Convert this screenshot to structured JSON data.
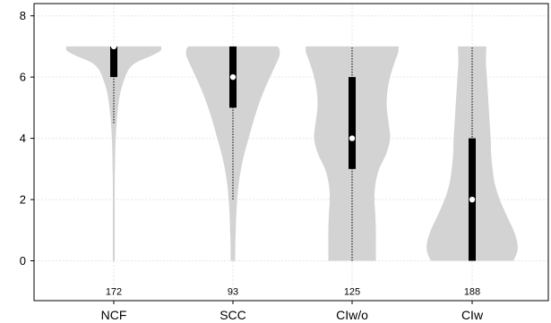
{
  "chart_data": {
    "type": "violin",
    "categories": [
      "NCF",
      "SCC",
      "CIw/o",
      "CIw"
    ],
    "counts": [
      "172",
      "93",
      "125",
      "188"
    ],
    "ylim": [
      -1.3,
      8.4
    ],
    "yticks": [
      0,
      2,
      4,
      6,
      8
    ],
    "grid": true,
    "colors": {
      "violin": "#d3d3d3",
      "box": "#000000",
      "median": "#ffffff",
      "whisker": "#000000",
      "grid": "#e6e6e6"
    },
    "violins": [
      {
        "name": "NCF",
        "median": 7,
        "q1": 6,
        "q3": 7,
        "whisker_low": 4.5,
        "whisker_high": 7,
        "density": [
          [
            0,
            0.02
          ],
          [
            0.5,
            0.02
          ],
          [
            1,
            0.02
          ],
          [
            1.5,
            0.02
          ],
          [
            2,
            0.02
          ],
          [
            2.5,
            0.02
          ],
          [
            3,
            0.025
          ],
          [
            3.5,
            0.03
          ],
          [
            4,
            0.04
          ],
          [
            4.5,
            0.06
          ],
          [
            5,
            0.09
          ],
          [
            5.5,
            0.14
          ],
          [
            6,
            0.24
          ],
          [
            6.3,
            0.34
          ],
          [
            6.5,
            0.5
          ],
          [
            6.7,
            0.8
          ],
          [
            6.85,
            0.98
          ],
          [
            6.95,
            1.0
          ],
          [
            7,
            1.0
          ]
        ]
      },
      {
        "name": "SCC",
        "median": 6,
        "q1": 5,
        "q3": 7,
        "whisker_low": 2,
        "whisker_high": 7,
        "density": [
          [
            0,
            0.05
          ],
          [
            0.5,
            0.05
          ],
          [
            1,
            0.06
          ],
          [
            1.5,
            0.07
          ],
          [
            2,
            0.09
          ],
          [
            2.5,
            0.12
          ],
          [
            3,
            0.17
          ],
          [
            3.5,
            0.24
          ],
          [
            4,
            0.33
          ],
          [
            4.5,
            0.42
          ],
          [
            5,
            0.52
          ],
          [
            5.5,
            0.64
          ],
          [
            6,
            0.78
          ],
          [
            6.4,
            0.9
          ],
          [
            6.7,
            0.98
          ],
          [
            6.9,
            0.98
          ],
          [
            7,
            0.94
          ]
        ]
      },
      {
        "name": "CIw/o",
        "median": 4,
        "q1": 3,
        "q3": 6,
        "whisker_low": 0,
        "whisker_high": 7,
        "density": [
          [
            0,
            0.5
          ],
          [
            0.5,
            0.5
          ],
          [
            1,
            0.5
          ],
          [
            1.5,
            0.49
          ],
          [
            2,
            0.47
          ],
          [
            2.5,
            0.49
          ],
          [
            3,
            0.57
          ],
          [
            3.5,
            0.72
          ],
          [
            4,
            0.8
          ],
          [
            4.5,
            0.77
          ],
          [
            5,
            0.73
          ],
          [
            5.5,
            0.74
          ],
          [
            6,
            0.8
          ],
          [
            6.5,
            0.9
          ],
          [
            6.8,
            0.97
          ],
          [
            7,
            0.98
          ]
        ]
      },
      {
        "name": "CIw",
        "median": 2,
        "q1": 0,
        "q3": 4,
        "whisker_low": 0,
        "whisker_high": 7,
        "density": [
          [
            0,
            0.87
          ],
          [
            0.3,
            0.95
          ],
          [
            0.6,
            0.95
          ],
          [
            1,
            0.87
          ],
          [
            1.5,
            0.72
          ],
          [
            2,
            0.58
          ],
          [
            2.5,
            0.48
          ],
          [
            3,
            0.43
          ],
          [
            3.5,
            0.4
          ],
          [
            4,
            0.39
          ],
          [
            4.5,
            0.37
          ],
          [
            5,
            0.35
          ],
          [
            5.5,
            0.33
          ],
          [
            6,
            0.31
          ],
          [
            6.5,
            0.29
          ],
          [
            7,
            0.3
          ]
        ]
      }
    ]
  }
}
